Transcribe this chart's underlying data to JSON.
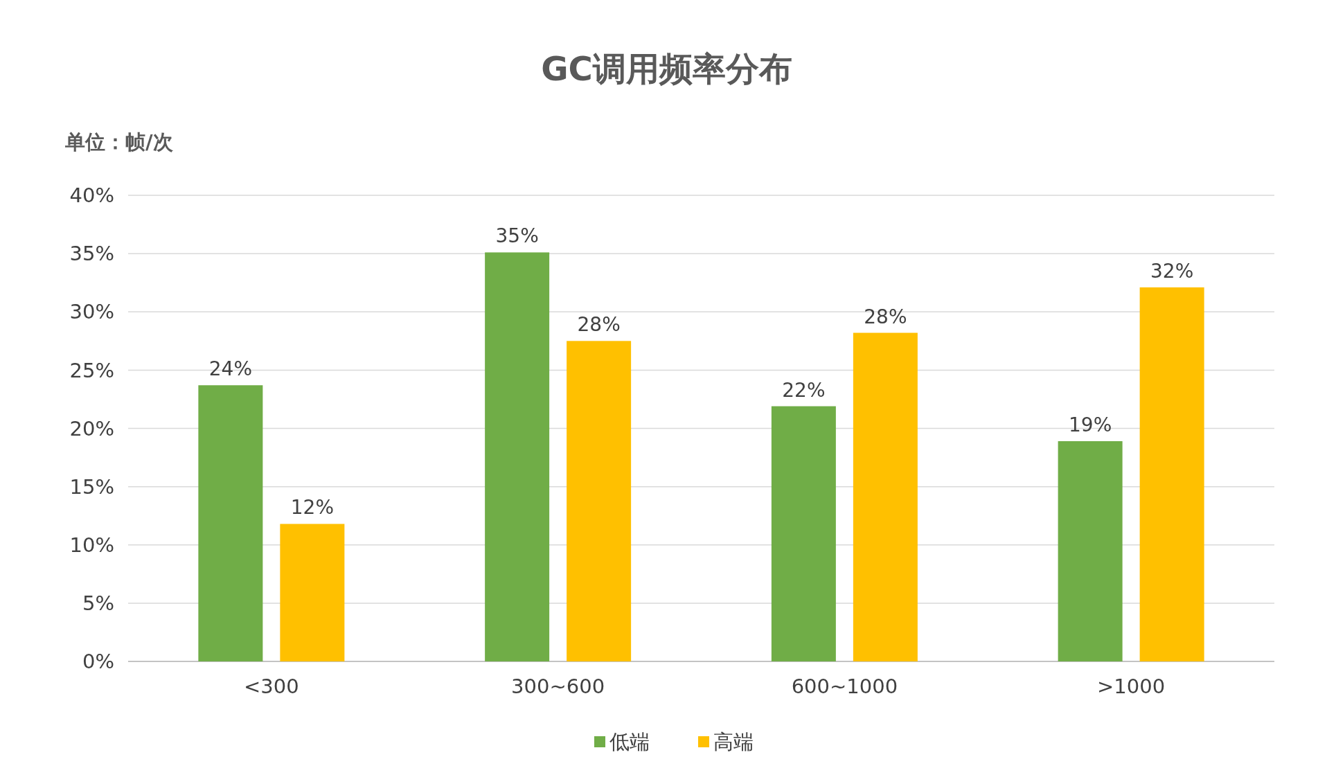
{
  "chart_data": {
    "type": "bar",
    "title": "GC调用频率分布",
    "ylabel": "单位：帧/次",
    "categories": [
      "<300",
      "300~600",
      "600~1000",
      ">1000"
    ],
    "series": [
      {
        "name": "低端",
        "color": "#70ad47",
        "values": [
          23.7,
          35.1,
          21.9,
          18.9
        ],
        "value_labels": [
          "24%",
          "35%",
          "22%",
          "19%"
        ]
      },
      {
        "name": "高端",
        "color": "#ffc000",
        "values": [
          11.8,
          27.5,
          28.2,
          32.1
        ],
        "value_labels": [
          "12%",
          "28%",
          "28%",
          "32%"
        ]
      }
    ],
    "ylim": [
      0,
      40
    ],
    "yticks": [
      {
        "value": 0,
        "label": "0%"
      },
      {
        "value": 5,
        "label": "5%"
      },
      {
        "value": 10,
        "label": "10%"
      },
      {
        "value": 15,
        "label": "15%"
      },
      {
        "value": 20,
        "label": "20%"
      },
      {
        "value": 25,
        "label": "25%"
      },
      {
        "value": 30,
        "label": "30%"
      },
      {
        "value": 35,
        "label": "35%"
      },
      {
        "value": 40,
        "label": "40%"
      }
    ],
    "grid": "y",
    "legend": "bottom"
  }
}
